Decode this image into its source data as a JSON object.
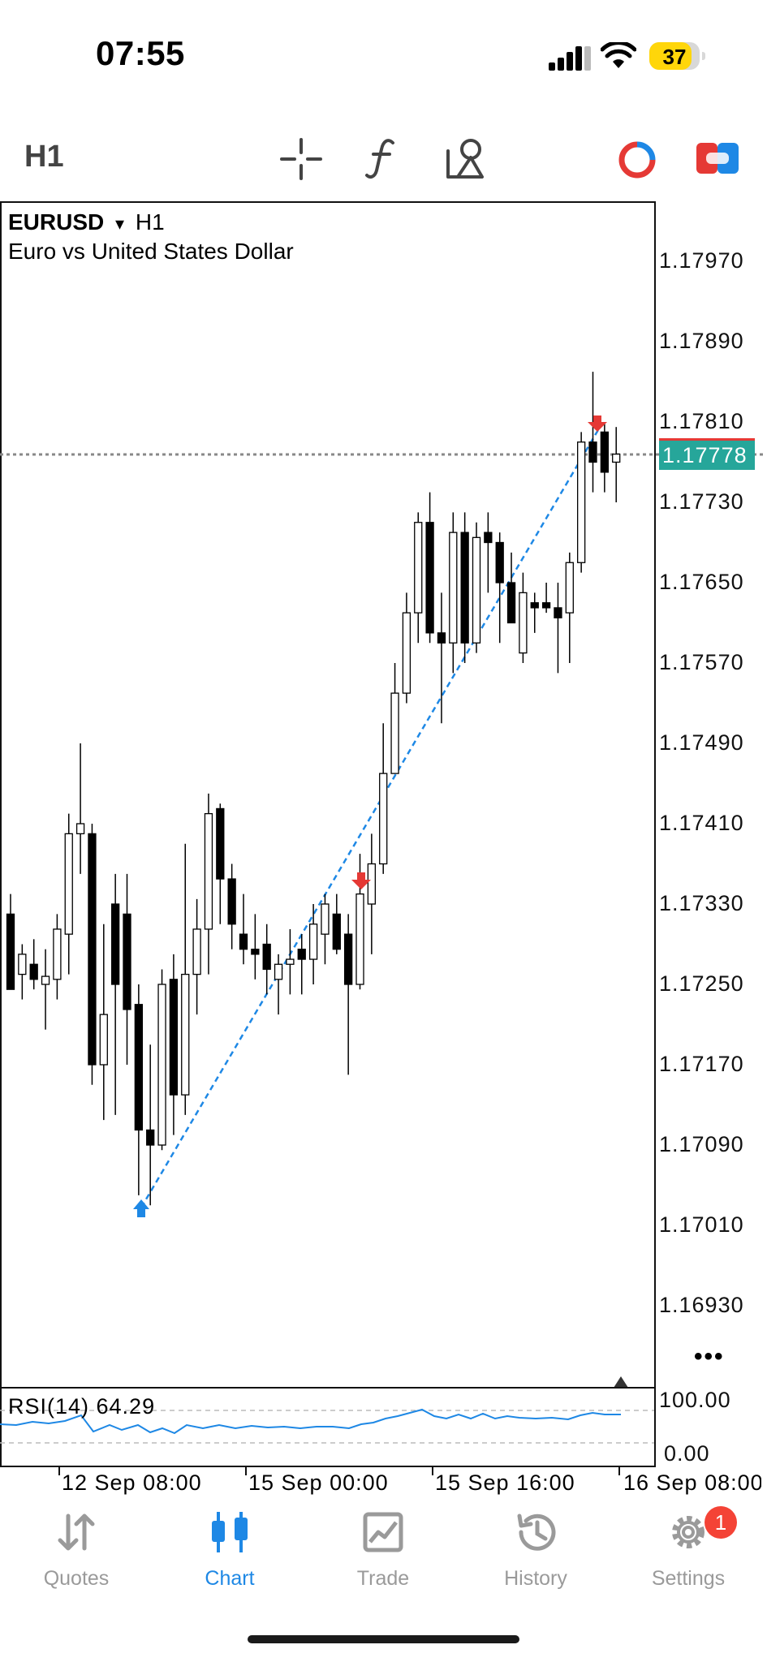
{
  "status_bar": {
    "time": "07:55",
    "battery": "37"
  },
  "toolbar": {
    "timeframe": "H1",
    "icons": [
      "crosshair-icon",
      "indicator-f-icon",
      "objects-icon",
      "trade-account-icon",
      "one-click-trade-icon"
    ]
  },
  "chart": {
    "symbol": "EURUSD",
    "dropdown_glyph": "▾",
    "timeframe": "H1",
    "description": "Euro vs United States Dollar",
    "current_price": "1.17778",
    "price_ticks": [
      "1.17970",
      "1.17890",
      "1.17810",
      "1.17730",
      "1.17650",
      "1.17570",
      "1.17490",
      "1.17410",
      "1.17330",
      "1.17250",
      "1.17170",
      "1.17090",
      "1.17010",
      "1.16930"
    ],
    "time_labels": [
      "12 Sep 08:00",
      "15 Sep 00:00",
      "15 Sep 16:00",
      "16 Sep 08:00"
    ],
    "more_glyph": "•••",
    "colors": {
      "bull": "#ffffff",
      "bear": "#000000",
      "signal_up": "#1e88e5",
      "signal_down": "#e53935",
      "trendline": "#1e88e5",
      "current_price_bg": "#26a69a"
    }
  },
  "rsi": {
    "label": "RSI(14) 64.29",
    "levels": [
      "100.00",
      "0.00"
    ],
    "color": "#1e88e5"
  },
  "tabs": [
    {
      "label": "Quotes",
      "icon": "quotes-icon"
    },
    {
      "label": "Chart",
      "icon": "chart-icon",
      "active": true
    },
    {
      "label": "Trade",
      "icon": "trade-icon"
    },
    {
      "label": "History",
      "icon": "history-icon"
    },
    {
      "label": "Settings",
      "icon": "settings-icon",
      "badge": "1"
    }
  ]
}
